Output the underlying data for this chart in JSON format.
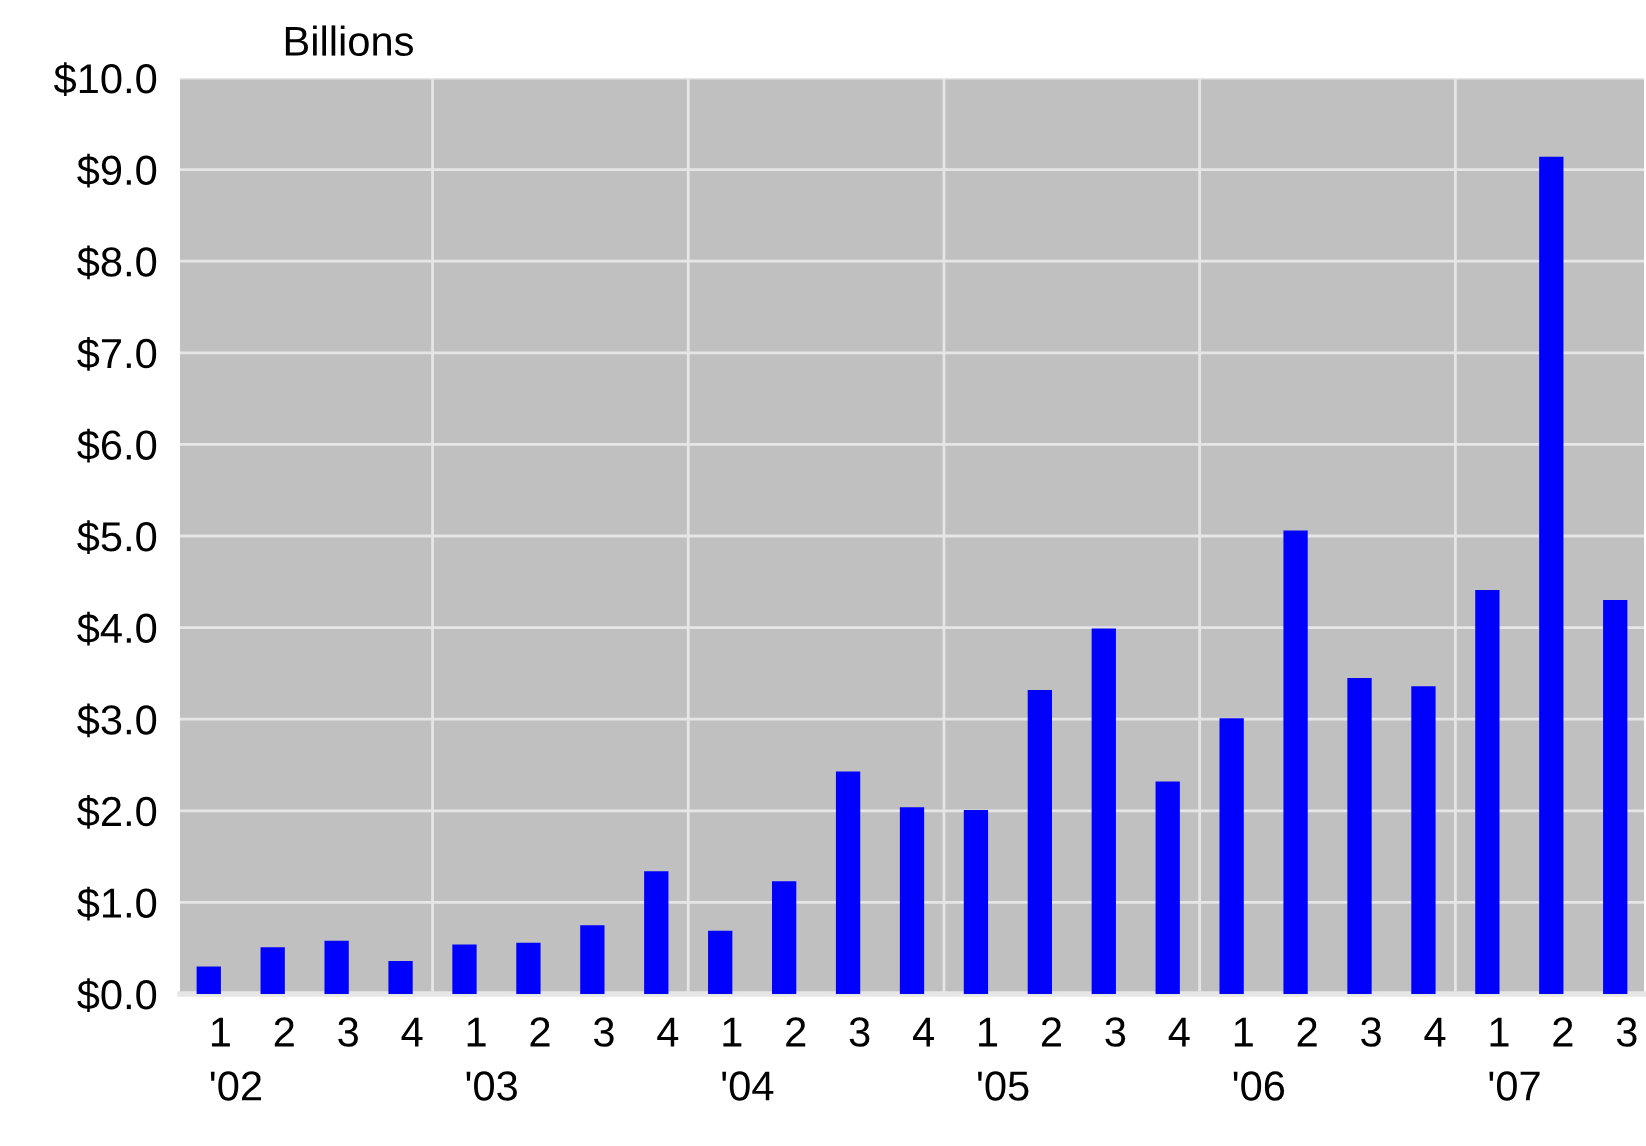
{
  "chart_data": {
    "type": "bar",
    "ylabel": "Billions",
    "categories": [
      "1\n'02",
      "2",
      "3",
      "4",
      "1\n'03",
      "2",
      "3",
      "4",
      "1\n'04",
      "2",
      "3",
      "4",
      "1\n'05",
      "2",
      "3",
      "4",
      "1\n'06",
      "2",
      "3",
      "4",
      "1\n'07",
      "2",
      "3"
    ],
    "values": [
      0.3,
      0.51,
      0.58,
      0.36,
      0.54,
      0.56,
      0.75,
      1.34,
      0.69,
      1.23,
      2.43,
      2.04,
      2.01,
      3.32,
      3.99,
      2.32,
      3.01,
      5.06,
      3.45,
      3.36,
      4.41,
      9.14,
      4.3
    ],
    "color": "#0000ff",
    "ylim": [
      0,
      10
    ],
    "yticks": [
      {
        "value": 0,
        "label": "$0.0"
      },
      {
        "value": 1,
        "label": "$1.0"
      },
      {
        "value": 2,
        "label": "$2.0"
      },
      {
        "value": 3,
        "label": "$3.0"
      },
      {
        "value": 4,
        "label": "$4.0"
      },
      {
        "value": 5,
        "label": "$5.0"
      },
      {
        "value": 6,
        "label": "$6.0"
      },
      {
        "value": 7,
        "label": "$7.0"
      },
      {
        "value": 8,
        "label": "$8.0"
      },
      {
        "value": 9,
        "label": "$9.0"
      },
      {
        "value": 10,
        "label": "$10.0"
      }
    ],
    "grid": true
  }
}
